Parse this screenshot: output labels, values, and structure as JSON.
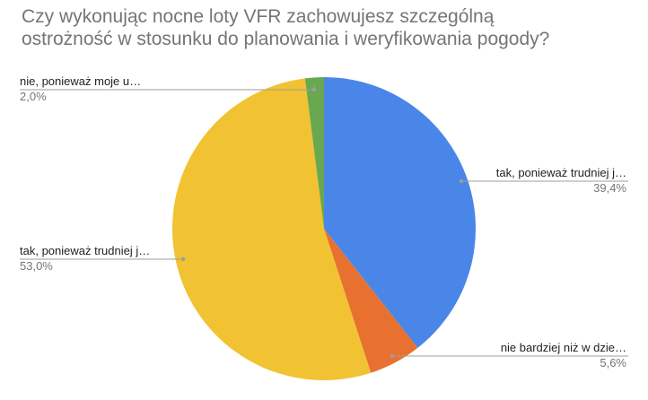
{
  "chart_data": {
    "type": "pie",
    "title": "Czy wykonując nocne loty VFR zachowujesz szczególną\nostrożność w stosunku do planowania i weryfikowania pogody?",
    "slices": [
      {
        "label": "tak, ponieważ trudniej j…",
        "value": 39.4,
        "percent_label": "39,4%",
        "color": "#4a86e8"
      },
      {
        "label": "nie bardziej niż w dzie…",
        "value": 5.6,
        "percent_label": "5,6%",
        "color": "#e8712f"
      },
      {
        "label": "tak, ponieważ trudniej j…",
        "value": 53.0,
        "percent_label": "53,0%",
        "color": "#f1c232"
      },
      {
        "label": "nie, ponieważ moje u…",
        "value": 2.0,
        "percent_label": "2,0%",
        "color": "#6aa84f"
      }
    ]
  }
}
